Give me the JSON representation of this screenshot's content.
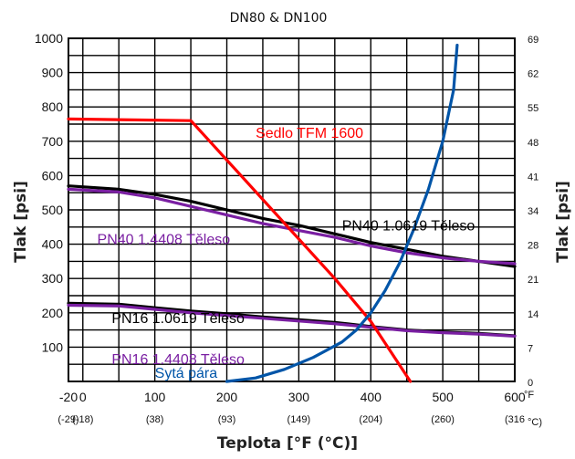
{
  "chart_data": {
    "type": "line",
    "title": "DN80 & DN100",
    "xlabel": "Teplota [°F (°C)]",
    "ylabel_left": "Tlak [psi]",
    "ylabel_right": "Tlak [psi]",
    "xlim": [
      -20,
      600
    ],
    "ylim": [
      0,
      1000
    ],
    "grid": true,
    "x_ticks": [
      -20,
      0,
      100,
      200,
      300,
      400,
      500,
      600
    ],
    "x_tick_labels": [
      "-20",
      "0",
      "100",
      "200",
      "300",
      "400",
      "500",
      "600"
    ],
    "x_tick_unit": "°F",
    "x_tick_celsius": [
      "(-29)",
      "(-18)",
      "(38)",
      "(93)",
      "(149)",
      "(204)",
      "(260)",
      "(316"
    ],
    "x_tick_celsius_unit": "°C)",
    "y_ticks_left": [
      100,
      200,
      300,
      400,
      500,
      600,
      700,
      800,
      900,
      1000
    ],
    "y_ticks_left_labels": [
      "100",
      "200",
      "300",
      "400",
      "500",
      "600",
      "700",
      "800",
      "900",
      "1000"
    ],
    "y_ticks_right": [
      0,
      7,
      14,
      21,
      28,
      34,
      41,
      48,
      55,
      62,
      69
    ],
    "y_ticks_right_labels": [
      "0",
      "7",
      "14",
      "21",
      "28",
      "34",
      "41",
      "48",
      "55",
      "62",
      "69"
    ],
    "series": [
      {
        "name": "PN40 1.0619 Těleso",
        "color": "#000000",
        "points": [
          [
            -20,
            570
          ],
          [
            50,
            560
          ],
          [
            100,
            545
          ],
          [
            150,
            525
          ],
          [
            200,
            500
          ],
          [
            250,
            475
          ],
          [
            300,
            455
          ],
          [
            350,
            430
          ],
          [
            400,
            405
          ],
          [
            450,
            385
          ],
          [
            500,
            365
          ],
          [
            550,
            350
          ],
          [
            600,
            335
          ]
        ]
      },
      {
        "name": "PN40 1.4408 Těleso",
        "color": "#7a1fa2",
        "points": [
          [
            -20,
            560
          ],
          [
            50,
            552
          ],
          [
            100,
            535
          ],
          [
            150,
            510
          ],
          [
            200,
            485
          ],
          [
            250,
            460
          ],
          [
            300,
            440
          ],
          [
            350,
            420
          ],
          [
            400,
            395
          ],
          [
            450,
            375
          ],
          [
            500,
            360
          ],
          [
            550,
            350
          ],
          [
            600,
            343
          ]
        ]
      },
      {
        "name": "PN16 1.0619 Těleso",
        "color": "#000000",
        "points": [
          [
            -20,
            228
          ],
          [
            50,
            225
          ],
          [
            100,
            215
          ],
          [
            150,
            205
          ],
          [
            200,
            197
          ],
          [
            250,
            188
          ],
          [
            300,
            180
          ],
          [
            350,
            172
          ],
          [
            400,
            160
          ],
          [
            450,
            150
          ],
          [
            500,
            144
          ],
          [
            550,
            140
          ],
          [
            600,
            133
          ]
        ]
      },
      {
        "name": "PN16 1.4408 Těleso",
        "color": "#7a1fa2",
        "points": [
          [
            -20,
            222
          ],
          [
            50,
            220
          ],
          [
            100,
            210
          ],
          [
            150,
            200
          ],
          [
            200,
            192
          ],
          [
            250,
            184
          ],
          [
            300,
            176
          ],
          [
            350,
            168
          ],
          [
            400,
            158
          ],
          [
            450,
            148
          ],
          [
            500,
            142
          ],
          [
            550,
            138
          ],
          [
            600,
            132
          ]
        ]
      },
      {
        "name": "Sedlo TFM 1600",
        "color": "#ff0000",
        "points": [
          [
            -20,
            765
          ],
          [
            150,
            760
          ],
          [
            250,
            530
          ],
          [
            350,
            300
          ],
          [
            400,
            175
          ],
          [
            455,
            0
          ]
        ]
      },
      {
        "name": "Sytá pára",
        "color": "#0055a8",
        "points": [
          [
            200,
            0
          ],
          [
            240,
            10
          ],
          [
            280,
            35
          ],
          [
            320,
            70
          ],
          [
            360,
            115
          ],
          [
            380,
            150
          ],
          [
            400,
            200
          ],
          [
            420,
            265
          ],
          [
            440,
            345
          ],
          [
            460,
            445
          ],
          [
            480,
            560
          ],
          [
            500,
            700
          ],
          [
            515,
            850
          ],
          [
            520,
            980
          ]
        ]
      }
    ],
    "annotations": [
      {
        "text": "Sedlo TFM 1600",
        "x": 240,
        "y": 710,
        "color": "#ff0000"
      },
      {
        "text": "PN40  1.0619 Těleso",
        "x": 360,
        "y": 440,
        "color": "#000000"
      },
      {
        "text": "PN40 1.4408 Těleso",
        "x": 20,
        "y": 400,
        "color": "#7a1fa2"
      },
      {
        "text": "PN16 1.0619 Těleso",
        "x": 40,
        "y": 170,
        "color": "#000000"
      },
      {
        "text": "PN16 1.4408 Těleso",
        "x": 40,
        "y": 50,
        "color": "#7a1fa2"
      },
      {
        "text": "Sytá pára",
        "x": 100,
        "y": 10,
        "color": "#0055a8"
      }
    ]
  }
}
